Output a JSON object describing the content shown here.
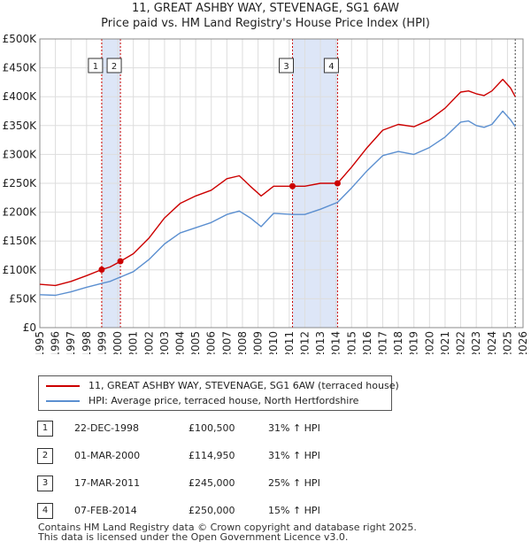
{
  "title_line1": "11, GREAT ASHBY WAY, STEVENAGE, SG1 6AW",
  "title_line2": "Price paid vs. HM Land Registry's House Price Index (HPI)",
  "legend": {
    "series1": "11, GREAT ASHBY WAY, STEVENAGE, SG1 6AW (terraced house)",
    "series2": "HPI: Average price, terraced house, North Hertfordshire"
  },
  "sales": [
    {
      "n": "1",
      "date": "22-DEC-1998",
      "price": "£100,500",
      "hpi": "31% ↑ HPI"
    },
    {
      "n": "2",
      "date": "01-MAR-2000",
      "price": "£114,950",
      "hpi": "31% ↑ HPI"
    },
    {
      "n": "3",
      "date": "17-MAR-2011",
      "price": "£245,000",
      "hpi": "25% ↑ HPI"
    },
    {
      "n": "4",
      "date": "07-FEB-2014",
      "price": "£250,000",
      "hpi": "15% ↑ HPI"
    }
  ],
  "footer_line1": "Contains HM Land Registry data © Crown copyright and database right 2025.",
  "footer_line2": "This data is licensed under the Open Government Licence v3.0.",
  "colors": {
    "property": "#cc0000",
    "hpi": "#5b8fd0",
    "shade": "#dde6f7",
    "grid": "#dddddd"
  },
  "chart_data": {
    "type": "line",
    "title": "11, GREAT ASHBY WAY, STEVENAGE, SG1 6AW",
    "subtitle": "Price paid vs. HM Land Registry's House Price Index (HPI)",
    "xlim": [
      1995,
      2026
    ],
    "ylim": [
      0,
      500000
    ],
    "xticks": [
      "1995",
      "1996",
      "1997",
      "1998",
      "1999",
      "2000",
      "2001",
      "2002",
      "2003",
      "2004",
      "2005",
      "2006",
      "2007",
      "2008",
      "2009",
      "2010",
      "2011",
      "2012",
      "2013",
      "2014",
      "2015",
      "2016",
      "2017",
      "2018",
      "2019",
      "2020",
      "2021",
      "2022",
      "2023",
      "2024",
      "2025",
      "2026"
    ],
    "yticks": [
      {
        "v": 0,
        "label": "£0"
      },
      {
        "v": 50000,
        "label": "£50K"
      },
      {
        "v": 100000,
        "label": "£100K"
      },
      {
        "v": 150000,
        "label": "£150K"
      },
      {
        "v": 200000,
        "label": "£200K"
      },
      {
        "v": 250000,
        "label": "£250K"
      },
      {
        "v": 300000,
        "label": "£300K"
      },
      {
        "v": 350000,
        "label": "£350K"
      },
      {
        "v": 400000,
        "label": "£400K"
      },
      {
        "v": 450000,
        "label": "£450K"
      },
      {
        "v": 500000,
        "label": "£500K"
      }
    ],
    "shaded_ranges": [
      [
        1998.97,
        2000.17
      ],
      [
        2011.21,
        2014.1
      ]
    ],
    "future_line": 2025.5,
    "series": [
      {
        "name": "11, GREAT ASHBY WAY, STEVENAGE, SG1 6AW (terraced house)",
        "x": [
          1995,
          1996,
          1997,
          1998,
          1998.97,
          1999.5,
          2000.17,
          2001,
          2002,
          2003,
          2004,
          2005,
          2006,
          2007,
          2007.8,
          2008.5,
          2009.2,
          2010,
          2011.21,
          2012,
          2013,
          2014.1,
          2015,
          2016,
          2017,
          2018,
          2019,
          2020,
          2021,
          2022,
          2022.5,
          2023,
          2023.5,
          2024,
          2024.7,
          2025.2,
          2025.5
        ],
        "values": [
          75000,
          73000,
          80000,
          90000,
          100500,
          105000,
          114950,
          128000,
          155000,
          190000,
          215000,
          228000,
          238000,
          258000,
          263000,
          245000,
          228000,
          245000,
          245000,
          245000,
          250000,
          250000,
          278000,
          312000,
          342000,
          352000,
          348000,
          360000,
          380000,
          408000,
          410000,
          405000,
          402000,
          410000,
          430000,
          415000,
          400000
        ]
      },
      {
        "name": "HPI: Average price, terraced house, North Hertfordshire",
        "x": [
          1995,
          1996,
          1997,
          1998,
          1998.97,
          1999.5,
          2000.17,
          2001,
          2002,
          2003,
          2004,
          2005,
          2006,
          2007,
          2007.8,
          2008.5,
          2009.2,
          2010,
          2011.21,
          2012,
          2013,
          2014.1,
          2015,
          2016,
          2017,
          2018,
          2019,
          2020,
          2021,
          2022,
          2022.5,
          2023,
          2023.5,
          2024,
          2024.7,
          2025.2,
          2025.5
        ],
        "values": [
          57000,
          56000,
          62000,
          70000,
          76500,
          80000,
          87500,
          97000,
          118000,
          145000,
          164000,
          173000,
          182000,
          196000,
          202000,
          190000,
          175000,
          198000,
          196000,
          196000,
          205000,
          217000,
          242000,
          272000,
          298000,
          305000,
          300000,
          312000,
          330000,
          356000,
          358000,
          350000,
          347000,
          352000,
          375000,
          360000,
          348000
        ]
      }
    ],
    "markers": [
      {
        "label": "1",
        "x": 1998.97,
        "y": 100500
      },
      {
        "label": "2",
        "x": 2000.17,
        "y": 114950
      },
      {
        "label": "3",
        "x": 2011.21,
        "y": 245000
      },
      {
        "label": "4",
        "x": 2014.1,
        "y": 250000
      }
    ]
  }
}
